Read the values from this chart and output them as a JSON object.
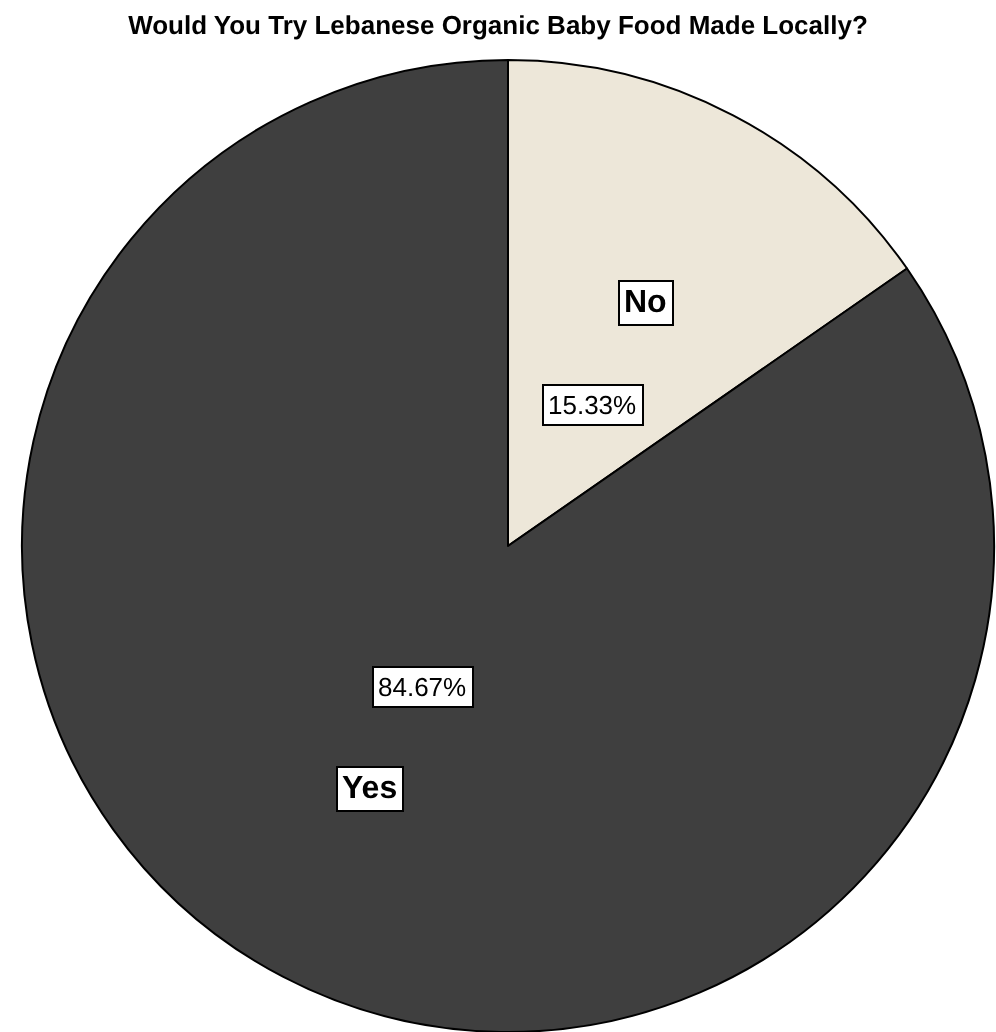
{
  "chart_data": {
    "type": "pie",
    "title": "Would You Try Lebanese Organic Baby Food Made Locally?",
    "categories": [
      "No",
      "Yes"
    ],
    "values": [
      15.33,
      84.67
    ],
    "colors": [
      "#ede7d9",
      "#3f3f3f"
    ],
    "value_labels": [
      "15.33%",
      "84.67%"
    ],
    "legend": false
  }
}
